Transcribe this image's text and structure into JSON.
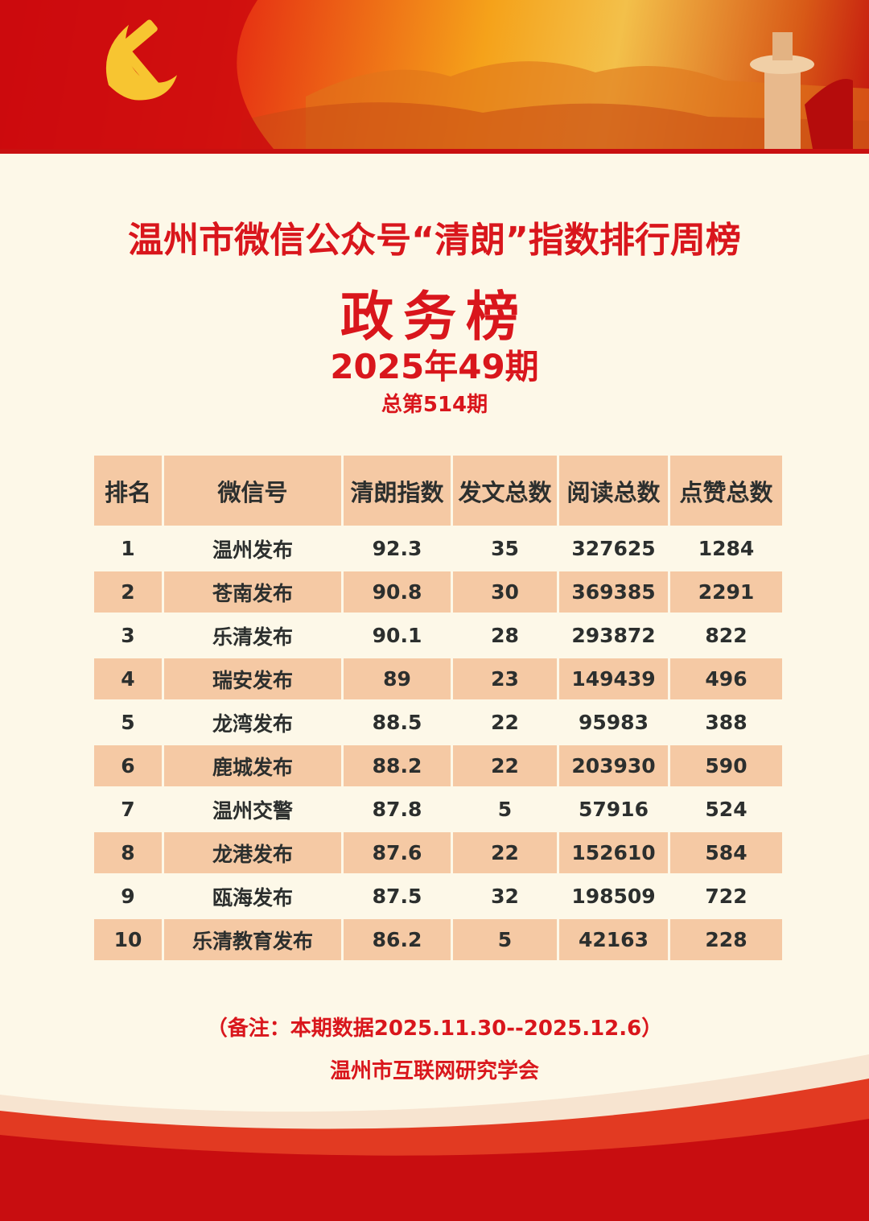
{
  "header": {
    "title": "温州市微信公众号“清朗”指数排行周榜",
    "subtitle": "政务榜",
    "issue": "2025年49期",
    "total_issue": "总第514期"
  },
  "colors": {
    "accent_red": "#d9161c",
    "table_header": "#f5c9a4",
    "background": "#fdf8e8"
  },
  "table": {
    "columns": [
      "排名",
      "微信号",
      "清朗指数",
      "发文总数",
      "阅读总数",
      "点赞总数"
    ],
    "rows": [
      [
        "1",
        "温州发布",
        "92.3",
        "35",
        "327625",
        "1284"
      ],
      [
        "2",
        "苍南发布",
        "90.8",
        "30",
        "369385",
        "2291"
      ],
      [
        "3",
        "乐清发布",
        "90.1",
        "28",
        "293872",
        "822"
      ],
      [
        "4",
        "瑞安发布",
        "89",
        "23",
        "149439",
        "496"
      ],
      [
        "5",
        "龙湾发布",
        "88.5",
        "22",
        "95983",
        "388"
      ],
      [
        "6",
        "鹿城发布",
        "88.2",
        "22",
        "203930",
        "590"
      ],
      [
        "7",
        "温州交警",
        "87.8",
        "5",
        "57916",
        "524"
      ],
      [
        "8",
        "龙港发布",
        "87.6",
        "22",
        "152610",
        "584"
      ],
      [
        "9",
        "瓯海发布",
        "87.5",
        "32",
        "198509",
        "722"
      ],
      [
        "10",
        "乐清教育发布",
        "86.2",
        "5",
        "42163",
        "228"
      ]
    ]
  },
  "footer": {
    "note": "（备注：本期数据2025.11.30--2025.12.6）",
    "organization": "温州市互联网研究学会"
  },
  "icons": [
    "party-emblem-icon",
    "huabiao-pillar-icon"
  ]
}
